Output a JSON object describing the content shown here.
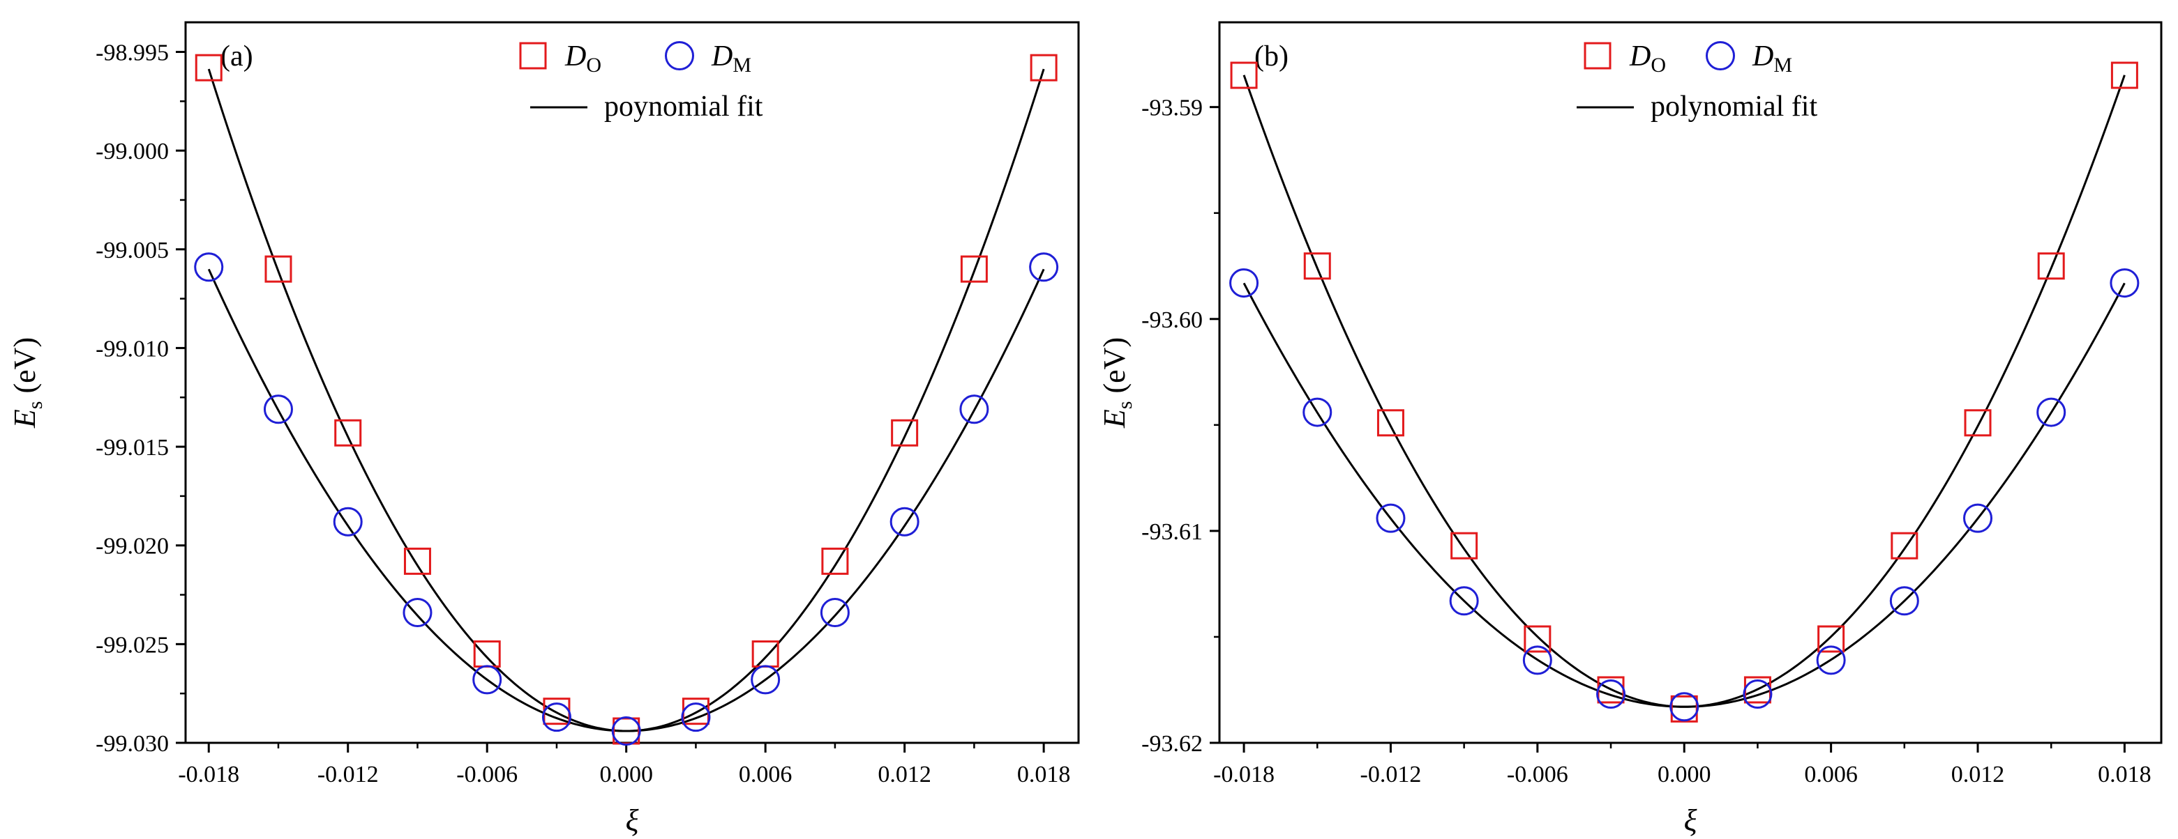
{
  "chart_data": [
    {
      "type": "scatter",
      "panel_label": "(a)",
      "xlabel": "ξ",
      "ylabel_main": "E",
      "ylabel_sub": "s",
      "ylabel_unit": " (eV)",
      "xlim": [
        -0.019,
        0.0195
      ],
      "ylim": [
        -99.03,
        -98.9935
      ],
      "xticks": [
        -0.018,
        -0.012,
        -0.006,
        0.0,
        0.006,
        0.012,
        0.018
      ],
      "xtick_labels": [
        "-0.018",
        "-0.012",
        "-0.006",
        "0.000",
        "0.006",
        "0.012",
        "0.018"
      ],
      "yticks": [
        -99.03,
        -99.025,
        -99.02,
        -99.015,
        -99.01,
        -99.005,
        -99.0,
        -98.995
      ],
      "ytick_labels": [
        "-99.030",
        "-99.025",
        "-99.020",
        "-99.015",
        "-99.010",
        "-99.005",
        "-99.000",
        "-98.995"
      ],
      "legend": {
        "placement": "top-center",
        "marker_entries": [
          {
            "series": "D_O",
            "main": "D",
            "sub": "O",
            "marker": "square",
            "color": "#e31a1c"
          },
          {
            "series": "D_M",
            "main": "D",
            "sub": "M",
            "marker": "circle",
            "color": "#1f1fd6"
          }
        ],
        "line_entry": {
          "label": "poynomial fit",
          "color": "#000000"
        }
      },
      "x": [
        -0.018,
        -0.015,
        -0.012,
        -0.009,
        -0.006,
        -0.003,
        0.0,
        0.003,
        0.006,
        0.009,
        0.012,
        0.015,
        0.018
      ],
      "series": [
        {
          "name": "D_O",
          "marker": "square",
          "color": "#e31a1c",
          "values": [
            -98.9958,
            -99.006,
            -99.0143,
            -99.0208,
            -99.0255,
            -99.0284,
            -99.0294,
            -99.0284,
            -99.0255,
            -99.0208,
            -99.0143,
            -99.006,
            -98.9958
          ]
        },
        {
          "name": "D_M",
          "marker": "circle",
          "color": "#1f1fd6",
          "values": [
            -99.0059,
            -99.0131,
            -99.0188,
            -99.0234,
            -99.0268,
            -99.0287,
            -99.0294,
            -99.0287,
            -99.0268,
            -99.0234,
            -99.0188,
            -99.0131,
            -99.0059
          ]
        }
      ],
      "fits": [
        {
          "name": "fit D_O",
          "center": -99.0294,
          "a2": 103.5,
          "a4": 0,
          "color": "#000000"
        },
        {
          "name": "fit D_M",
          "center": -99.0294,
          "a2": 72.2,
          "a4": 0,
          "color": "#000000"
        }
      ]
    },
    {
      "type": "scatter",
      "panel_label": "(b)",
      "xlabel": "ξ",
      "ylabel_main": "E",
      "ylabel_sub": "s",
      "ylabel_unit": " (eV)",
      "xlim": [
        -0.019,
        0.0195
      ],
      "ylim": [
        -93.62,
        -93.586
      ],
      "xticks": [
        -0.018,
        -0.012,
        -0.006,
        0.0,
        0.006,
        0.012,
        0.018
      ],
      "xtick_labels": [
        "-0.018",
        "-0.012",
        "-0.006",
        "0.000",
        "0.006",
        "0.012",
        "0.018"
      ],
      "yticks": [
        -93.62,
        -93.61,
        -93.6,
        -93.59
      ],
      "ytick_labels": [
        "-93.62",
        "-93.61",
        "-93.60",
        "-93.59"
      ],
      "legend": {
        "placement": "top-center",
        "marker_entries": [
          {
            "series": "D_O",
            "main": "D",
            "sub": "O",
            "marker": "square",
            "color": "#e31a1c"
          },
          {
            "series": "D_M",
            "main": "D",
            "sub": "M",
            "marker": "circle",
            "color": "#1f1fd6"
          }
        ],
        "line_entry": {
          "label": "polynomial fit",
          "color": "#000000"
        }
      },
      "x": [
        -0.018,
        -0.015,
        -0.012,
        -0.009,
        -0.006,
        -0.003,
        0.0,
        0.003,
        0.006,
        0.009,
        0.012,
        0.015,
        0.018
      ],
      "series": [
        {
          "name": "D_O",
          "marker": "square",
          "color": "#e31a1c",
          "values": [
            -93.5885,
            -93.5975,
            -93.6049,
            -93.6107,
            -93.6151,
            -93.6175,
            -93.6184,
            -93.6175,
            -93.6151,
            -93.6107,
            -93.6049,
            -93.5975,
            -93.5885
          ]
        },
        {
          "name": "D_M",
          "marker": "circle",
          "color": "#1f1fd6",
          "values": [
            -93.5983,
            -93.6044,
            -93.6094,
            -93.6133,
            -93.6161,
            -93.6177,
            -93.6183,
            -93.6177,
            -93.6161,
            -93.6133,
            -93.6094,
            -93.6044,
            -93.5983
          ]
        }
      ],
      "fits": [
        {
          "name": "fit D_O",
          "center": -93.6183,
          "a2": 92.0,
          "a4": 0,
          "color": "#000000"
        },
        {
          "name": "fit D_M",
          "center": -93.6183,
          "a2": 61.7,
          "a4": 0,
          "color": "#000000"
        }
      ]
    }
  ]
}
